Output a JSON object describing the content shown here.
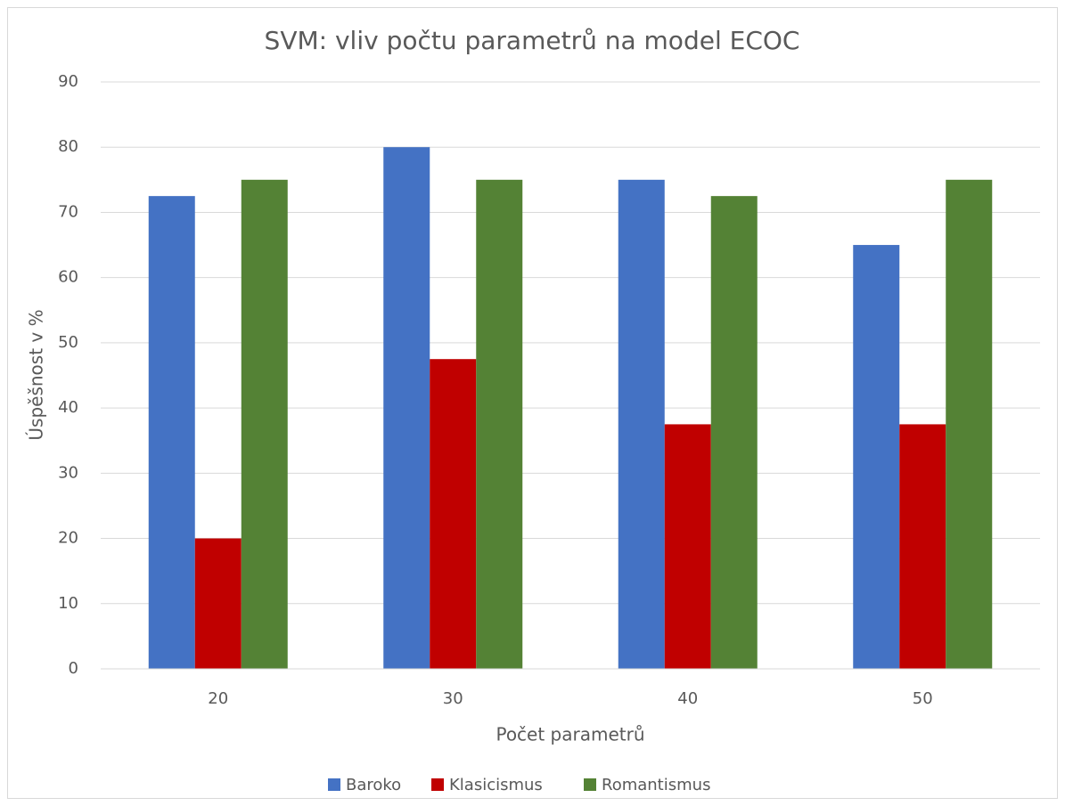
{
  "chart_data": {
    "type": "bar",
    "title": "SVM: vliv počtu parametrů na model ECOC",
    "xlabel": "Počet parametrů",
    "ylabel": "Úspěšnost v %",
    "categories": [
      "20",
      "30",
      "40",
      "50"
    ],
    "series": [
      {
        "name": "Baroko",
        "color": "#4472c4",
        "values": [
          72.5,
          80,
          75,
          65
        ]
      },
      {
        "name": "Klasicismus",
        "color": "#c00000",
        "values": [
          20,
          47.5,
          37.5,
          37.5
        ]
      },
      {
        "name": "Romantismus",
        "color": "#548235",
        "values": [
          75,
          75,
          72.5,
          75
        ]
      }
    ],
    "ylim": [
      0,
      90
    ],
    "yticks": [
      0,
      10,
      20,
      30,
      40,
      50,
      60,
      70,
      80,
      90
    ],
    "grid": true,
    "legend": "bottom"
  }
}
